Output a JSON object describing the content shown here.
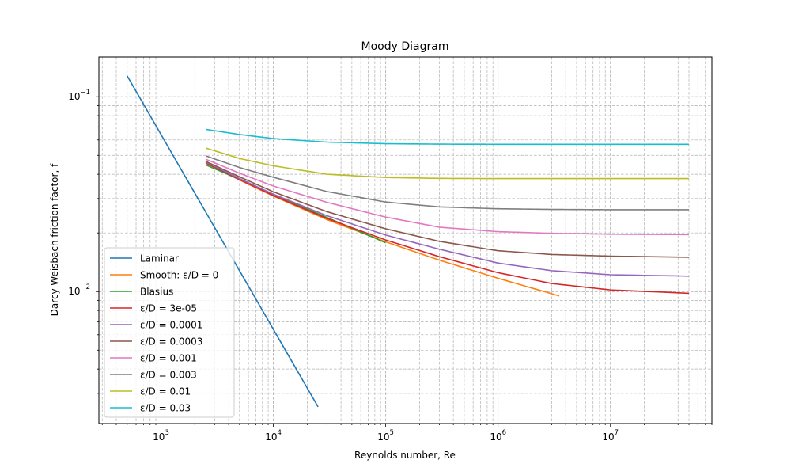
{
  "chart_data": {
    "type": "line",
    "title": "Moody Diagram",
    "xlabel": "Reynolds number, Re",
    "ylabel": "Darcy-Weisbach friction factor, f",
    "xscale": "log",
    "yscale": "log",
    "xlim": [
      280,
      80000000
    ],
    "ylim": [
      0.0021,
      0.16
    ],
    "x_major_ticks": [
      {
        "value": 1000,
        "base": "10",
        "exp": "3"
      },
      {
        "value": 10000,
        "base": "10",
        "exp": "4"
      },
      {
        "value": 100000,
        "base": "10",
        "exp": "5"
      },
      {
        "value": 1000000,
        "base": "10",
        "exp": "6"
      },
      {
        "value": 10000000,
        "base": "10",
        "exp": "7"
      }
    ],
    "y_major_ticks": [
      {
        "value": 0.01,
        "base": "10",
        "exp": "−2"
      },
      {
        "value": 0.1,
        "base": "10",
        "exp": "−1"
      }
    ],
    "grid": true,
    "grid_which": "both",
    "legend_location": "lower-left",
    "series": [
      {
        "name": "Laminar",
        "color": "#1f77b4",
        "x": [
          500,
          25000
        ],
        "y": [
          0.128,
          0.00256
        ]
      },
      {
        "name": "Smooth: ε/D = 0",
        "color": "#ff7f0e",
        "x": [
          2500,
          5000,
          10000,
          30000,
          100000,
          300000,
          1000000,
          3500000
        ],
        "y": [
          0.0456,
          0.0374,
          0.0309,
          0.0234,
          0.018,
          0.0145,
          0.0117,
          0.0095
        ]
      },
      {
        "name": "Blasius",
        "color": "#2ca02c",
        "x": [
          2500,
          5000,
          10000,
          30000,
          100000
        ],
        "y": [
          0.0447,
          0.0376,
          0.0316,
          0.024,
          0.0178
        ]
      },
      {
        "name": "ε/D = 3e-05",
        "color": "#d62728",
        "x": [
          2500,
          5000,
          10000,
          30000,
          100000,
          300000,
          1000000,
          3000000,
          10000000,
          50000000
        ],
        "y": [
          0.0458,
          0.0376,
          0.0311,
          0.0237,
          0.0184,
          0.0151,
          0.0125,
          0.011,
          0.0102,
          0.0098
        ]
      },
      {
        "name": "ε/D = 0.0001",
        "color": "#9467bd",
        "x": [
          2500,
          5000,
          10000,
          30000,
          100000,
          300000,
          1000000,
          3000000,
          10000000,
          50000000
        ],
        "y": [
          0.0462,
          0.038,
          0.0316,
          0.0245,
          0.0195,
          0.0165,
          0.014,
          0.0128,
          0.0122,
          0.012
        ]
      },
      {
        "name": "ε/D = 0.0003",
        "color": "#8c564b",
        "x": [
          2500,
          5000,
          10000,
          30000,
          100000,
          300000,
          1000000,
          3000000,
          10000000,
          50000000
        ],
        "y": [
          0.0466,
          0.0388,
          0.0325,
          0.0257,
          0.021,
          0.0181,
          0.0162,
          0.0155,
          0.0152,
          0.015
        ]
      },
      {
        "name": "ε/D = 0.001",
        "color": "#e377c2",
        "x": [
          2500,
          5000,
          10000,
          30000,
          100000,
          300000,
          1000000,
          3000000,
          10000000,
          50000000
        ],
        "y": [
          0.0478,
          0.0405,
          0.0348,
          0.0287,
          0.0241,
          0.0214,
          0.0203,
          0.0199,
          0.0197,
          0.0196
        ]
      },
      {
        "name": "ε/D = 0.003",
        "color": "#7f7f7f",
        "x": [
          2500,
          5000,
          10000,
          30000,
          100000,
          300000,
          1000000,
          3000000,
          10000000,
          50000000
        ],
        "y": [
          0.0497,
          0.0433,
          0.0386,
          0.0326,
          0.0288,
          0.0272,
          0.0266,
          0.0264,
          0.0263,
          0.0263
        ]
      },
      {
        "name": "ε/D = 0.01",
        "color": "#bcbd22",
        "x": [
          2500,
          5000,
          10000,
          30000,
          100000,
          300000,
          1000000,
          3000000,
          10000000,
          50000000
        ],
        "y": [
          0.0545,
          0.0482,
          0.0442,
          0.04,
          0.0385,
          0.0381,
          0.038,
          0.038,
          0.038,
          0.038
        ]
      },
      {
        "name": "ε/D = 0.03",
        "color": "#17becf",
        "x": [
          2500,
          5000,
          10000,
          30000,
          100000,
          300000,
          1000000,
          3000000,
          10000000,
          50000000
        ],
        "y": [
          0.068,
          0.064,
          0.061,
          0.0585,
          0.0574,
          0.0571,
          0.057,
          0.057,
          0.057,
          0.057
        ]
      }
    ]
  }
}
